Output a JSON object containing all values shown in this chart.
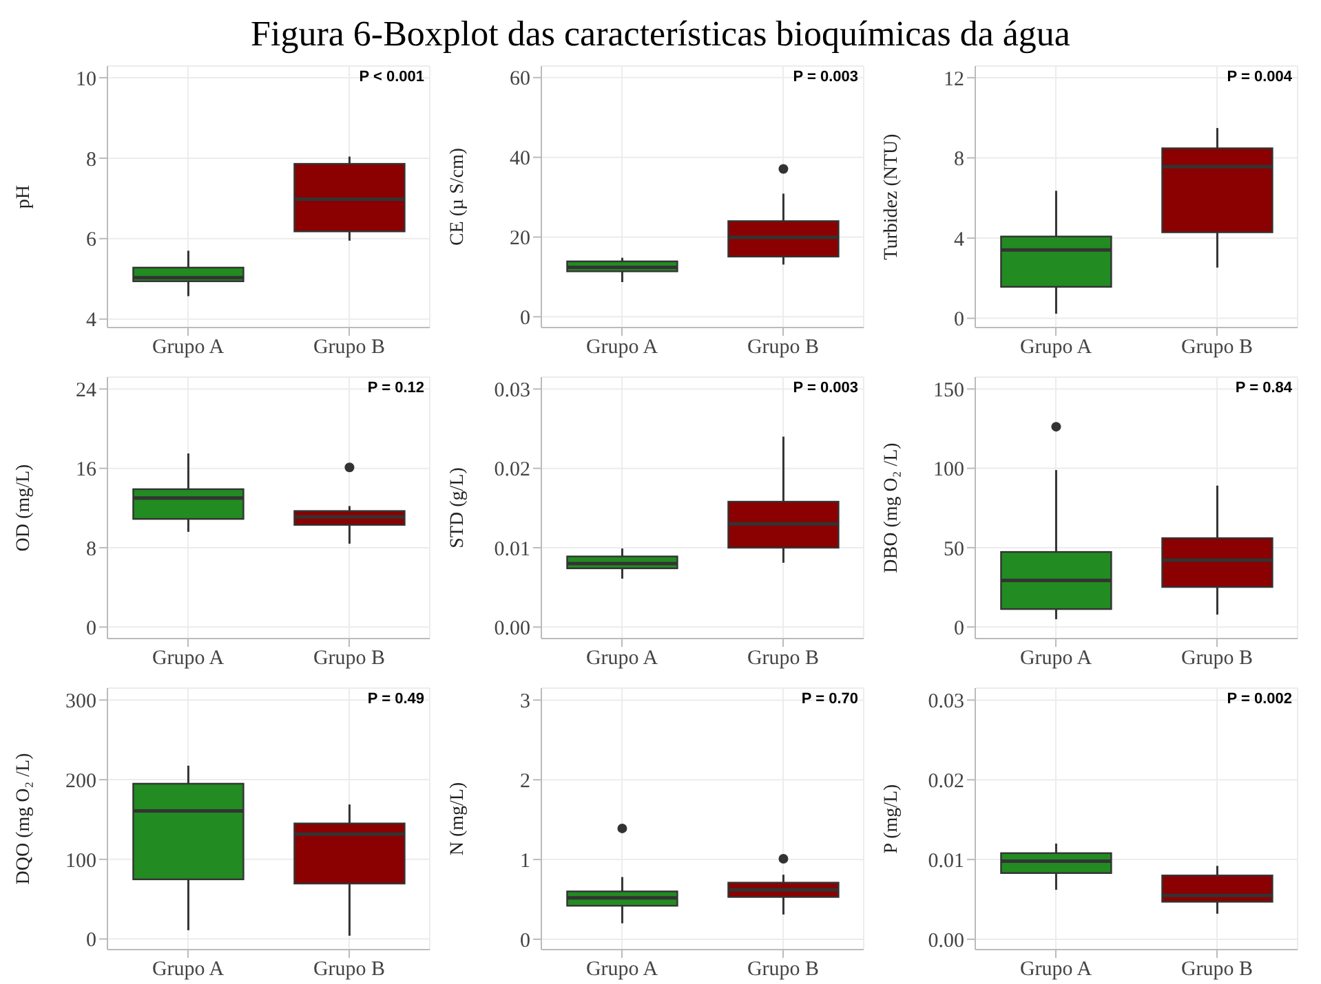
{
  "chart_data": [
    {
      "type": "box",
      "title": "Figura 6-Boxplot das características bioquímicas da água",
      "ylabel": "pH",
      "categories": [
        "Grupo A",
        "Grupo B"
      ],
      "colors": [
        "#228b22",
        "#8b0000"
      ],
      "ylim": [
        3.79,
        10.29
      ],
      "yticks": [
        4,
        6,
        8,
        10
      ],
      "grid": true,
      "annotations": [
        "P < 0.001"
      ],
      "boxes": [
        {
          "low": 4.57,
          "q1": 4.94,
          "median": 5.03,
          "q3": 5.28,
          "high": 5.7
        },
        {
          "low": 5.95,
          "q1": 6.18,
          "median": 6.98,
          "q3": 7.86,
          "high": 8.04
        }
      ]
    },
    {
      "type": "box",
      "ylabel": "CE (µ S/cm)",
      "categories": [
        "Grupo A",
        "Grupo B"
      ],
      "colors": [
        "#228b22",
        "#8b0000"
      ],
      "ylim": [
        -2.7,
        62.9
      ],
      "yticks": [
        0,
        20,
        40,
        60
      ],
      "grid": true,
      "annotations": [
        "P = 0.003"
      ],
      "boxes": [
        {
          "low": 8.7,
          "q1": 11.4,
          "median": 12.4,
          "q3": 13.9,
          "high": 14.8
        },
        {
          "low": 13.1,
          "q1": 15.1,
          "median": 19.9,
          "q3": 24,
          "high": 30.9,
          "outliers": [
            37.1
          ]
        }
      ]
    },
    {
      "type": "box",
      "ylabel": "Turbidez (NTU)",
      "categories": [
        "Grupo A",
        "Grupo B"
      ],
      "colors": [
        "#228b22",
        "#8b0000"
      ],
      "ylim": [
        -0.46,
        12.58
      ],
      "yticks": [
        0,
        4,
        8,
        12
      ],
      "grid": true,
      "annotations": [
        "P = 0.004"
      ],
      "boxes": [
        {
          "low": 0.23,
          "q1": 1.57,
          "median": 3.41,
          "q3": 4.08,
          "high": 6.36
        },
        {
          "low": 2.53,
          "q1": 4.29,
          "median": 7.56,
          "q3": 8.48,
          "high": 9.49
        }
      ]
    },
    {
      "type": "box",
      "ylabel": "OD (mg/L)",
      "categories": [
        "Grupo A",
        "Grupo B"
      ],
      "colors": [
        "#228b22",
        "#8b0000"
      ],
      "ylim": [
        -1.16,
        25.2
      ],
      "yticks": [
        0,
        8,
        16,
        24
      ],
      "grid": true,
      "annotations": [
        "P = 0.12"
      ],
      "boxes": [
        {
          "low": 9.6,
          "q1": 10.9,
          "median": 13,
          "q3": 13.9,
          "high": 17.5
        },
        {
          "low": 8.4,
          "q1": 10.3,
          "median": 11.1,
          "q3": 11.7,
          "high": 12.2,
          "outliers": [
            16.1
          ]
        }
      ]
    },
    {
      "type": "box",
      "ylabel": "STD (g/L)",
      "categories": [
        "Grupo A",
        "Grupo B"
      ],
      "colors": [
        "#228b22",
        "#8b0000"
      ],
      "ylim": [
        -0.00145,
        0.0315
      ],
      "yticks": [
        {
          "value": 0,
          "label": "0.00"
        },
        {
          "value": 0.01,
          "label": "0.01"
        },
        {
          "value": 0.02,
          "label": "0.02"
        },
        {
          "value": 0.03,
          "label": "0.03"
        }
      ],
      "grid": true,
      "annotations": [
        "P = 0.003"
      ],
      "boxes": [
        {
          "low": 0.0061,
          "q1": 0.0074,
          "median": 0.008,
          "q3": 0.0089,
          "high": 0.0099
        },
        {
          "low": 0.0081,
          "q1": 0.01,
          "median": 0.013,
          "q3": 0.0158,
          "high": 0.024
        }
      ]
    },
    {
      "type": "box",
      "ylabel": "DBO (mg O₂ /L)",
      "categories": [
        "Grupo A",
        "Grupo B"
      ],
      "colors": [
        "#228b22",
        "#8b0000"
      ],
      "ylim": [
        -7.3,
        157.5
      ],
      "yticks": [
        0,
        50,
        100,
        150
      ],
      "grid": true,
      "annotations": [
        "P = 0.84"
      ],
      "boxes": [
        {
          "low": 4.9,
          "q1": 11.3,
          "median": 29.3,
          "q3": 47.3,
          "high": 98.9,
          "outliers": [
            126.2
          ]
        },
        {
          "low": 7.8,
          "q1": 25.2,
          "median": 42.1,
          "q3": 56,
          "high": 89.1
        }
      ]
    },
    {
      "type": "box",
      "ylabel": "DQO (mg O₂ /L)",
      "categories": [
        "Grupo A",
        "Grupo B"
      ],
      "colors": [
        "#228b22",
        "#8b0000"
      ],
      "ylim": [
        -13.3,
        315
      ],
      "yticks": [
        0,
        100,
        200,
        300
      ],
      "grid": true,
      "annotations": [
        "P = 0.49"
      ],
      "boxes": [
        {
          "low": 11,
          "q1": 74.9,
          "median": 160.8,
          "q3": 195,
          "high": 217.6
        },
        {
          "low": 4.1,
          "q1": 69.6,
          "median": 131.7,
          "q3": 145.1,
          "high": 168.9
        }
      ]
    },
    {
      "type": "box",
      "ylabel": "N (mg/L)",
      "categories": [
        "Grupo A",
        "Grupo B"
      ],
      "colors": [
        "#228b22",
        "#8b0000"
      ],
      "ylim": [
        -0.13,
        3.15
      ],
      "yticks": [
        0,
        1,
        2,
        3
      ],
      "grid": true,
      "annotations": [
        "P = 0.70"
      ],
      "boxes": [
        {
          "low": 0.2,
          "q1": 0.42,
          "median": 0.52,
          "q3": 0.6,
          "high": 0.78,
          "outliers": [
            1.39
          ]
        },
        {
          "low": 0.31,
          "q1": 0.53,
          "median": 0.62,
          "q3": 0.71,
          "high": 0.81,
          "outliers": [
            1.01
          ]
        }
      ]
    },
    {
      "type": "box",
      "ylabel": "P (mg/L)",
      "categories": [
        "Grupo A",
        "Grupo B"
      ],
      "colors": [
        "#228b22",
        "#8b0000"
      ],
      "ylim": [
        -0.0013,
        0.0315
      ],
      "yticks": [
        {
          "value": 0,
          "label": "0.00"
        },
        {
          "value": 0.01,
          "label": "0.01"
        },
        {
          "value": 0.02,
          "label": "0.02"
        },
        {
          "value": 0.03,
          "label": "0.03"
        }
      ],
      "grid": true,
      "annotations": [
        "P = 0.002"
      ],
      "boxes": [
        {
          "low": 0.0062,
          "q1": 0.0083,
          "median": 0.0098,
          "q3": 0.0108,
          "high": 0.012
        },
        {
          "low": 0.0032,
          "q1": 0.0047,
          "median": 0.0055,
          "q3": 0.008,
          "high": 0.0092
        }
      ]
    }
  ]
}
